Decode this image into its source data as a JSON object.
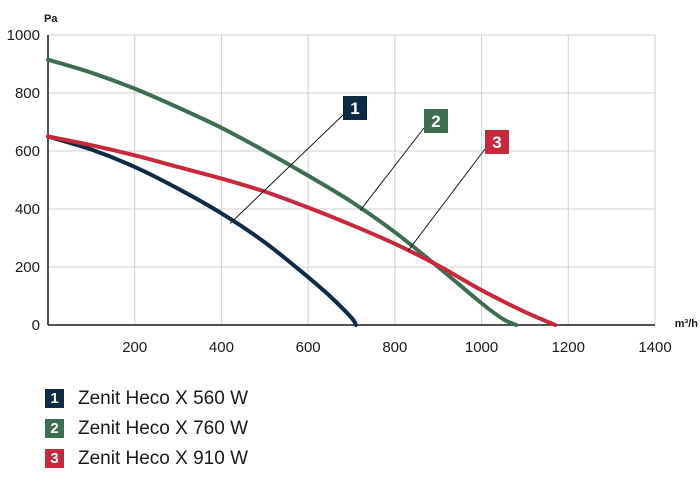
{
  "chart_data": {
    "type": "line",
    "title": "",
    "xlabel": "m³/h",
    "ylabel": "Pa",
    "xlim": [
      0,
      1400
    ],
    "ylim": [
      0,
      1000
    ],
    "x_ticks": [
      200,
      400,
      600,
      800,
      1000,
      1200,
      1400
    ],
    "y_ticks": [
      0,
      200,
      400,
      600,
      800,
      1000
    ],
    "grid": true,
    "legend_position": "bottom-left",
    "series": [
      {
        "name": "Zenit Heco X 560 W",
        "number": "1",
        "color": "#0e2a44",
        "x": [
          0,
          100,
          200,
          300,
          400,
          500,
          600,
          650,
          700,
          710
        ],
        "y": [
          650,
          605,
          545,
          470,
          385,
          285,
          165,
          100,
          25,
          0
        ]
      },
      {
        "name": "Zenit Heco X 760 W",
        "number": "2",
        "color": "#3f6d52",
        "x": [
          0,
          100,
          200,
          300,
          400,
          500,
          600,
          700,
          800,
          900,
          1000,
          1050,
          1080
        ],
        "y": [
          915,
          870,
          815,
          750,
          680,
          600,
          515,
          425,
          320,
          200,
          75,
          20,
          0
        ]
      },
      {
        "name": "Zenit Heco X 910 W",
        "number": "3",
        "color": "#c8283c",
        "x": [
          0,
          100,
          200,
          300,
          400,
          500,
          600,
          700,
          800,
          900,
          1000,
          1100,
          1170
        ],
        "y": [
          650,
          620,
          585,
          545,
          505,
          460,
          405,
          345,
          280,
          205,
          120,
          45,
          0
        ]
      }
    ],
    "annotations": [
      {
        "label": "1",
        "color": "#0e2a44",
        "at": [
          420,
          350
        ]
      },
      {
        "label": "2",
        "color": "#3f6d52",
        "at": [
          720,
          395
        ]
      },
      {
        "label": "3",
        "color": "#c8283c",
        "at": [
          830,
          255
        ]
      }
    ]
  }
}
